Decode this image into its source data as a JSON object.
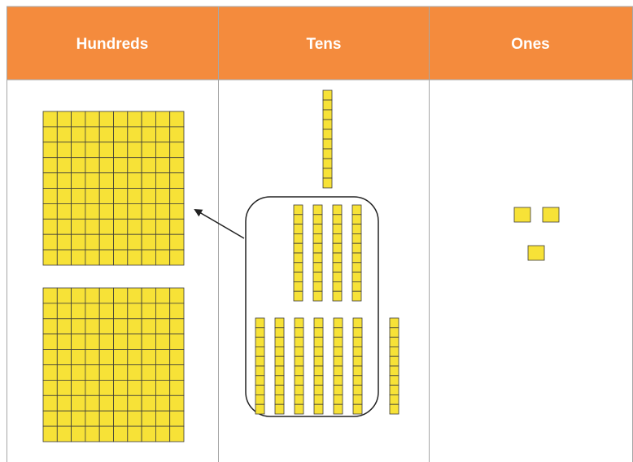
{
  "table": {
    "headers": [
      "Hundreds",
      "Tens",
      "Ones"
    ]
  }
}
